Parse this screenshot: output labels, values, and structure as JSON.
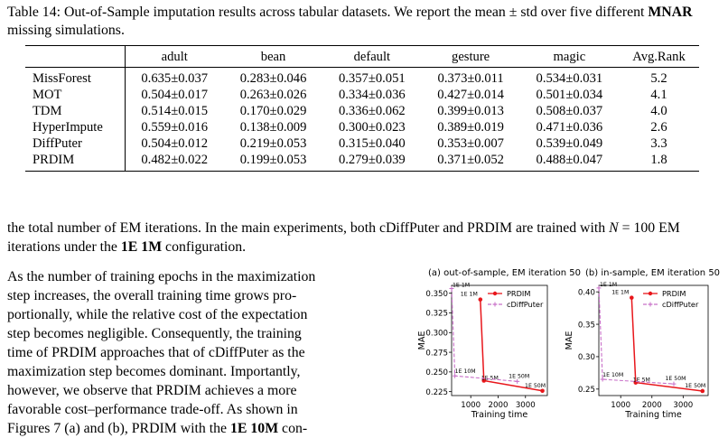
{
  "caption": {
    "prefix": "Table 14: Out-of-Sample imputation results across tabular datasets. We report the mean ± std over five different ",
    "bold": "MNAR",
    "suffix": " missing simulations."
  },
  "table": {
    "columns": [
      "",
      "adult",
      "bean",
      "default",
      "gesture",
      "magic",
      "Avg.Rank"
    ],
    "rows": [
      {
        "method": "MissForest",
        "cells": [
          {
            "v": "0.635±0.037"
          },
          {
            "v": "0.283±0.046"
          },
          {
            "v": "0.357±0.051"
          },
          {
            "v": "0.373±0.011"
          },
          {
            "v": "0.534±0.031"
          },
          {
            "v": "5.2"
          }
        ]
      },
      {
        "method": "MOT",
        "cells": [
          {
            "v": "0.504±0.017"
          },
          {
            "v": "0.263±0.026"
          },
          {
            "v": "0.334±0.036"
          },
          {
            "v": "0.427±0.014"
          },
          {
            "v": "0.501±0.034"
          },
          {
            "v": "4.1"
          }
        ]
      },
      {
        "method": "TDM",
        "cells": [
          {
            "v": "0.514±0.015"
          },
          {
            "v": "0.170±0.029"
          },
          {
            "v": "0.336±0.062"
          },
          {
            "v": "0.399±0.013"
          },
          {
            "v": "0.508±0.037"
          },
          {
            "v": "4.0"
          }
        ]
      },
      {
        "method": "HyperImpute",
        "cells": [
          {
            "v": "0.559±0.016"
          },
          {
            "v": "0.138±0.009",
            "b": true
          },
          {
            "v": "0.300±0.023"
          },
          {
            "v": "0.389±0.019"
          },
          {
            "v": "0.471±0.036",
            "b": true
          },
          {
            "v": "2.6"
          }
        ]
      },
      {
        "method": "DiffPuter",
        "cells": [
          {
            "v": "0.504±0.012"
          },
          {
            "v": "0.219±0.053"
          },
          {
            "v": "0.315±0.040"
          },
          {
            "v": "0.353±0.007",
            "b": true
          },
          {
            "v": "0.539±0.049"
          },
          {
            "v": "3.3"
          }
        ]
      },
      {
        "method": "PRDIM",
        "cells": [
          {
            "v": "0.482±0.022",
            "b": true
          },
          {
            "v": "0.199±0.053"
          },
          {
            "v": "0.279±0.039",
            "b": true
          },
          {
            "v": "0.371±0.052"
          },
          {
            "v": "0.488±0.047"
          },
          {
            "v": "1.8",
            "b": true
          }
        ]
      }
    ]
  },
  "para1": {
    "text1": "the total number of EM iterations. In the main experiments, both cDiffPuter and PRDIM are trained with ",
    "math": "N",
    "text2": " = 100 EM iterations under the ",
    "bold": "1E 1M",
    "text3": " configuration."
  },
  "para2": {
    "lines": [
      "As the number of training epochs in the maximization",
      "step increases, the overall training time grows pro-",
      "portionally, while the relative cost of the expectation",
      "step becomes negligible. Consequently, the training",
      "time of PRDIM approaches that of cDiffPuter as the",
      "maximization step becomes dominant. Importantly,",
      "however, we observe that PRDIM achieves a more",
      "favorable cost–performance trade-off. As shown in"
    ],
    "last_prefix": "Figures 7 (a) and (b), PRDIM with the ",
    "last_bold": "1E 10M",
    "last_suffix": " con-"
  },
  "chart_data": [
    {
      "type": "line",
      "title": "(a) out-of-sample, EM iteration 50",
      "xlabel": "Training time",
      "ylabel": "MAE",
      "xlim": [
        300,
        3800
      ],
      "ylim": [
        0.22,
        0.36
      ],
      "xticks": [
        1000,
        2000,
        3000
      ],
      "yticks": [
        0.225,
        0.25,
        0.275,
        0.3,
        0.325,
        0.35
      ],
      "ytick_labels": [
        "0.225",
        "0.250",
        "0.275",
        "0.300",
        "0.325",
        "0.350"
      ],
      "legend": "top-right",
      "series": [
        {
          "name": "PRDIM",
          "color": "#e8161b",
          "style": "solid",
          "points": [
            {
              "x": 1350,
              "y": 0.342,
              "label": "1E 1M"
            },
            {
              "x": 1480,
              "y": 0.239,
              "label": "1E 5M"
            },
            {
              "x": 3620,
              "y": 0.226,
              "label": "1E 50M"
            }
          ]
        },
        {
          "name": "cDiffPuter",
          "color": "#c86fc8",
          "style": "dashed",
          "points": [
            {
              "x": 300,
              "y": 0.356,
              "label": "1E 1M"
            },
            {
              "x": 420,
              "y": 0.245,
              "label": "1E 10M"
            },
            {
              "x": 2700,
              "y": 0.238,
              "label": "1E 50M"
            }
          ]
        }
      ]
    },
    {
      "type": "line",
      "title": "(b) in-sample, EM iteration 50",
      "xlabel": "Training time",
      "ylabel": "MAE",
      "xlim": [
        300,
        3800
      ],
      "ylim": [
        0.24,
        0.41
      ],
      "xticks": [
        1000,
        2000,
        3000
      ],
      "yticks": [
        0.25,
        0.3,
        0.35,
        0.4
      ],
      "ytick_labels": [
        "0.25",
        "0.30",
        "0.35",
        "0.40"
      ],
      "legend": "top-right",
      "series": [
        {
          "name": "PRDIM",
          "color": "#e8161b",
          "style": "solid",
          "points": [
            {
              "x": 1350,
              "y": 0.391,
              "label": "1E 1M"
            },
            {
              "x": 1480,
              "y": 0.26,
              "label": "1E 5M"
            },
            {
              "x": 3620,
              "y": 0.247,
              "label": "1E 50M"
            }
          ]
        },
        {
          "name": "cDiffPuter",
          "color": "#c86fc8",
          "style": "dashed",
          "points": [
            {
              "x": 300,
              "y": 0.406,
              "label": "1E 1M"
            },
            {
              "x": 420,
              "y": 0.265,
              "label": "1E 10M"
            },
            {
              "x": 2700,
              "y": 0.258,
              "label": "1E 50M"
            }
          ]
        }
      ]
    }
  ]
}
